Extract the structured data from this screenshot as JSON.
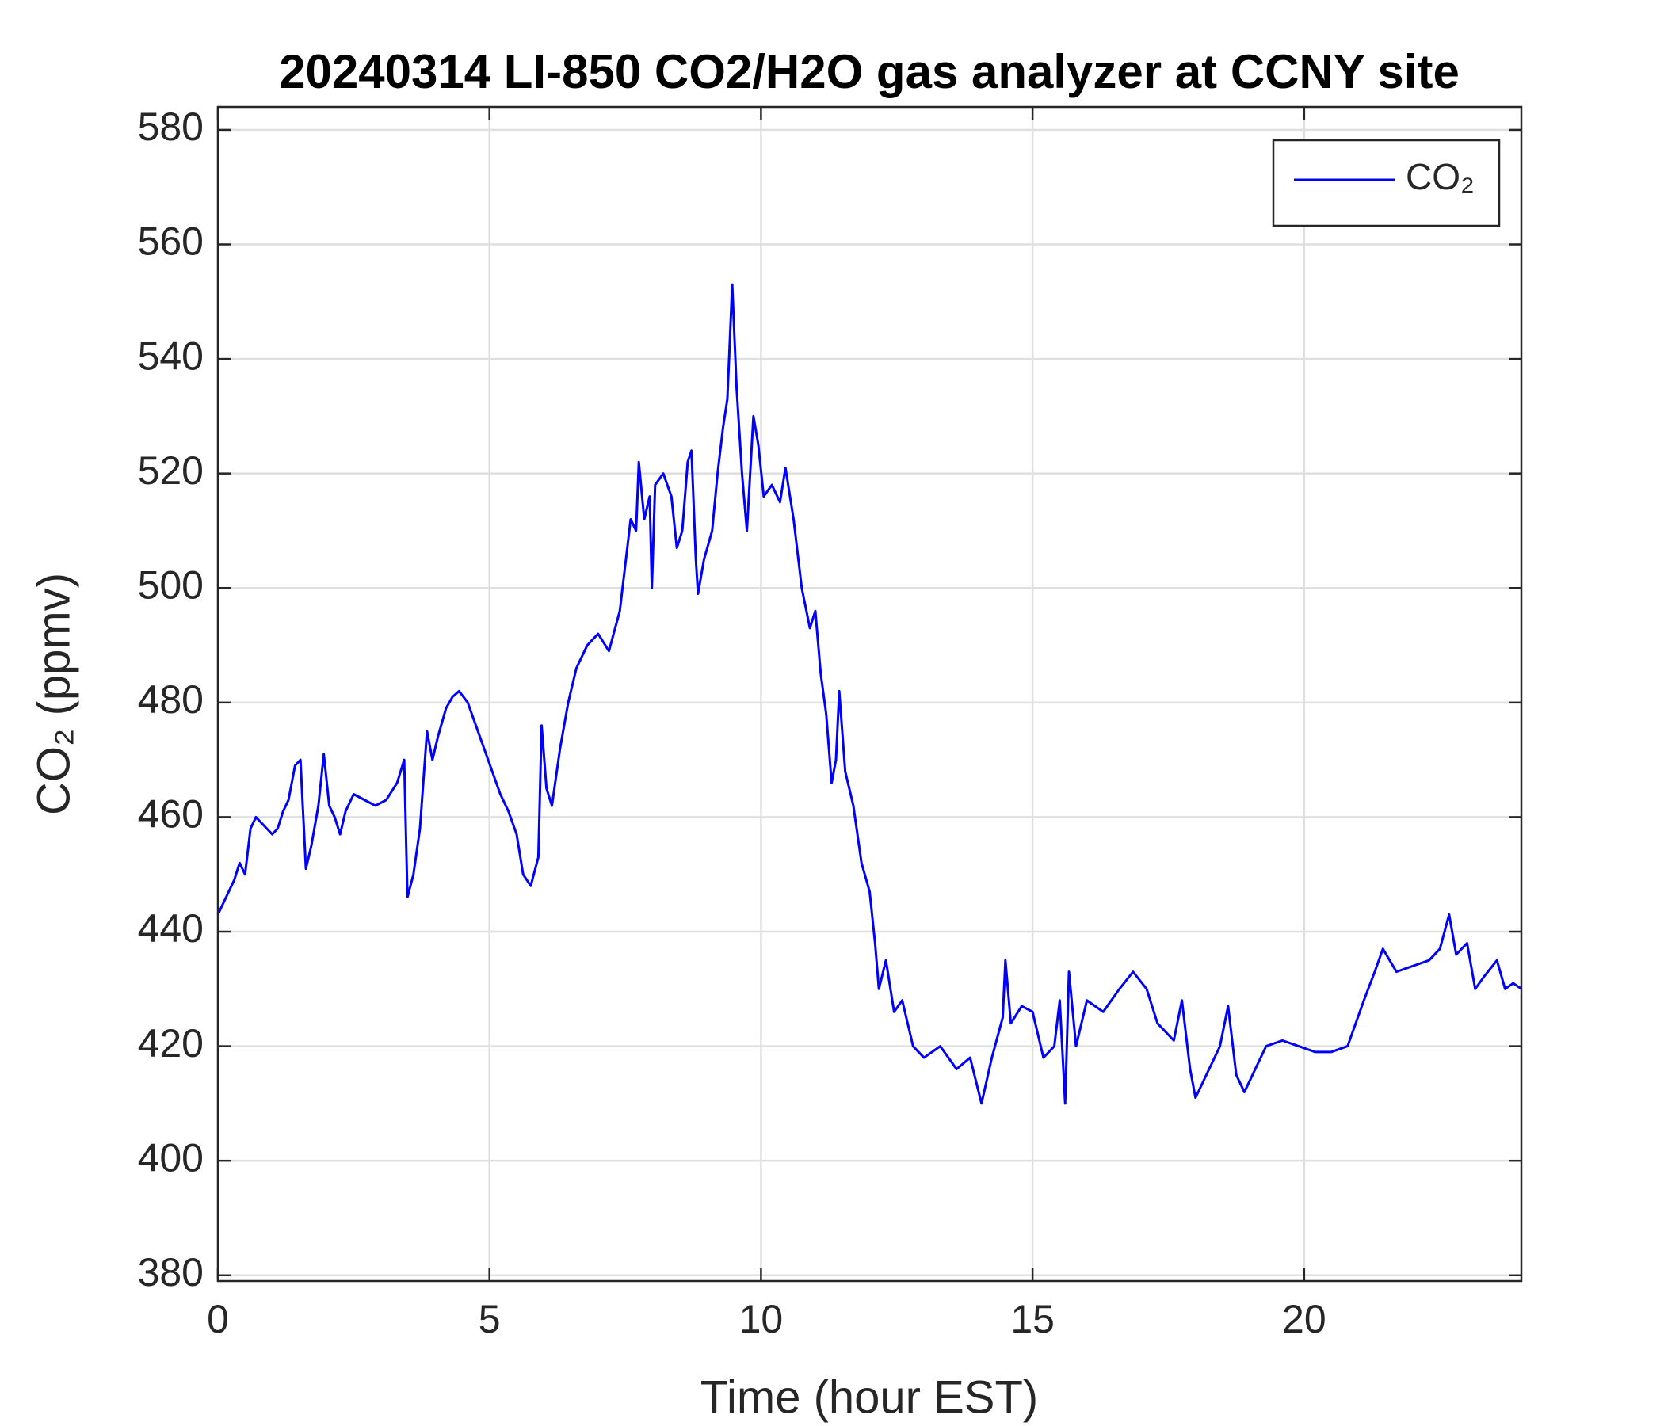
{
  "chart_data": {
    "type": "line",
    "title": "20240314 LI-850 CO2/H2O gas analyzer at CCNY site",
    "xlabel": "Time (hour EST)",
    "ylabel": "CO₂ (ppmv)",
    "xlim": [
      0,
      24
    ],
    "xticks": [
      0,
      5,
      10,
      15,
      20
    ],
    "ylim": [
      379,
      584
    ],
    "yticks": [
      380,
      400,
      420,
      440,
      460,
      480,
      500,
      520,
      540,
      560,
      580
    ],
    "grid": true,
    "legend": "upper right",
    "x": [
      0,
      0.1,
      0.2,
      0.3,
      0.4,
      0.5,
      0.6,
      0.7,
      0.8,
      0.9,
      1.0,
      1.1,
      1.2,
      1.3,
      1.42,
      1.52,
      1.62,
      1.72,
      1.85,
      1.95,
      2.05,
      2.15,
      2.25,
      2.35,
      2.5,
      2.7,
      2.9,
      3.1,
      3.3,
      3.43,
      3.49,
      3.6,
      3.72,
      3.85,
      3.95,
      4.05,
      4.2,
      4.32,
      4.44,
      4.6,
      4.75,
      4.9,
      5.05,
      5.2,
      5.35,
      5.5,
      5.62,
      5.76,
      5.9,
      5.96,
      6.05,
      6.15,
      6.3,
      6.45,
      6.6,
      6.8,
      7.0,
      7.2,
      7.4,
      7.5,
      7.6,
      7.7,
      7.75,
      7.85,
      7.95,
      7.99,
      8.05,
      8.2,
      8.35,
      8.45,
      8.55,
      8.65,
      8.72,
      8.8,
      8.84,
      8.95,
      9.1,
      9.2,
      9.3,
      9.38,
      9.47,
      9.55,
      9.65,
      9.74,
      9.86,
      9.95,
      10.05,
      10.2,
      10.35,
      10.45,
      10.6,
      10.75,
      10.9,
      11.0,
      11.1,
      11.2,
      11.3,
      11.38,
      11.44,
      11.55,
      11.7,
      11.85,
      12.0,
      12.1,
      12.17,
      12.3,
      12.45,
      12.6,
      12.8,
      13.0,
      13.3,
      13.6,
      13.85,
      14.06,
      14.25,
      14.45,
      14.5,
      14.6,
      14.8,
      15.0,
      15.2,
      15.4,
      15.5,
      15.6,
      15.67,
      15.8,
      16.0,
      16.3,
      16.6,
      16.85,
      17.1,
      17.3,
      17.6,
      17.75,
      17.9,
      18.0,
      18.2,
      18.45,
      18.6,
      18.75,
      18.9,
      19.1,
      19.3,
      19.6,
      19.9,
      20.2,
      20.5,
      20.8,
      20.95,
      21.1,
      21.3,
      21.45,
      21.7,
      22.0,
      22.3,
      22.5,
      22.67,
      22.8,
      23.0,
      23.15,
      23.3,
      23.55,
      23.7,
      23.85,
      24.0
    ],
    "series": [
      {
        "name": "CO₂",
        "color": "#0000ff",
        "values": [
          443,
          445,
          447,
          449,
          452,
          450,
          458,
          460,
          459,
          458,
          457,
          458,
          461,
          463,
          469,
          470,
          451,
          455,
          462,
          471,
          462,
          460,
          457,
          461,
          464,
          463,
          462,
          463,
          466,
          470,
          446,
          450,
          458,
          475,
          470,
          474,
          479,
          481,
          482,
          480,
          476,
          472,
          468,
          464,
          461,
          457,
          450,
          448,
          453,
          476,
          465,
          462,
          472,
          480,
          486,
          490,
          492,
          489,
          496,
          504,
          512,
          510,
          522,
          512,
          516,
          500,
          518,
          520,
          516,
          507,
          510,
          522,
          524,
          505,
          499,
          505,
          510,
          520,
          528,
          533,
          553,
          535,
          520,
          510,
          530,
          525,
          516,
          518,
          515,
          521,
          512,
          500,
          493,
          496,
          485,
          478,
          466,
          470,
          482,
          468,
          462,
          452,
          447,
          438,
          430,
          435,
          426,
          428,
          420,
          418,
          420,
          416,
          418,
          410,
          418,
          425,
          435,
          424,
          427,
          426,
          418,
          420,
          428,
          410,
          433,
          420,
          428,
          426,
          430,
          433,
          430,
          424,
          421,
          428,
          416,
          411,
          415,
          420,
          427,
          415,
          412,
          416,
          420,
          421,
          420,
          419,
          419,
          420,
          424,
          428,
          433,
          437,
          433,
          434,
          435,
          437,
          443,
          436,
          438,
          430,
          432,
          435,
          430,
          431,
          430
        ]
      }
    ]
  }
}
